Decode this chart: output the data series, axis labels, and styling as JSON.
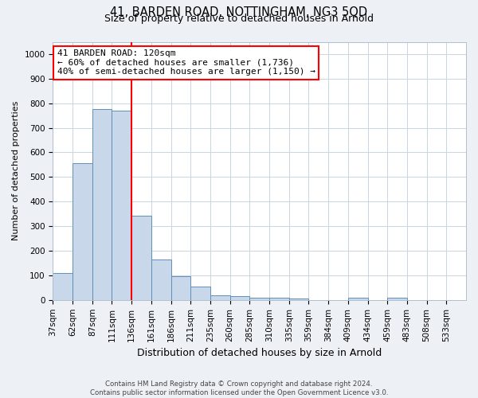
{
  "title": "41, BARDEN ROAD, NOTTINGHAM, NG3 5QD",
  "subtitle": "Size of property relative to detached houses in Arnold",
  "xlabel": "Distribution of detached houses by size in Arnold",
  "ylabel": "Number of detached properties",
  "categories": [
    "37sqm",
    "62sqm",
    "87sqm",
    "111sqm",
    "136sqm",
    "161sqm",
    "186sqm",
    "211sqm",
    "235sqm",
    "260sqm",
    "285sqm",
    "310sqm",
    "335sqm",
    "359sqm",
    "384sqm",
    "409sqm",
    "434sqm",
    "459sqm",
    "483sqm",
    "508sqm",
    "533sqm"
  ],
  "values": [
    111,
    556,
    776,
    770,
    344,
    163,
    98,
    54,
    20,
    14,
    10,
    8,
    5,
    0,
    0,
    8,
    0,
    10,
    0,
    0,
    0
  ],
  "bar_color": "#c8d8ea",
  "bar_edge_color": "#6090b8",
  "bar_linewidth": 0.7,
  "red_line_index": 4,
  "annotation_text": "41 BARDEN ROAD: 120sqm\n← 60% of detached houses are smaller (1,736)\n40% of semi-detached houses are larger (1,150) →",
  "annotation_box_color": "white",
  "annotation_box_edge": "red",
  "ylim": [
    0,
    1050
  ],
  "yticks": [
    0,
    100,
    200,
    300,
    400,
    500,
    600,
    700,
    800,
    900,
    1000
  ],
  "grid_color": "#c8d4df",
  "footnote": "Contains HM Land Registry data © Crown copyright and database right 2024.\nContains public sector information licensed under the Open Government Licence v3.0.",
  "background_color": "#edf1f5",
  "plot_background": "#ffffff",
  "title_fontsize": 10.5,
  "subtitle_fontsize": 9,
  "xlabel_fontsize": 9,
  "ylabel_fontsize": 8,
  "tick_fontsize": 7.5,
  "annotation_fontsize": 8,
  "footnote_fontsize": 6.2
}
